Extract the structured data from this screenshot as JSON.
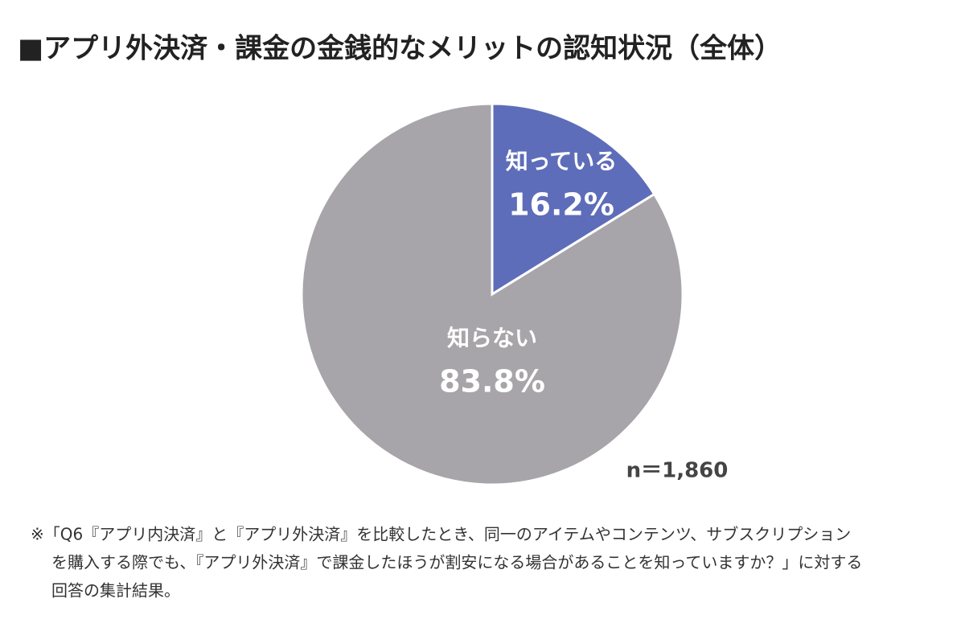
{
  "chart_data": {
    "type": "pie",
    "title": "■アプリ外決済・課金の金銭的なメリットの認知状況（全体）",
    "categories": [
      "知っている",
      "知らない"
    ],
    "values": [
      16.2,
      83.8
    ],
    "value_labels": [
      "16.2%",
      "83.8%"
    ],
    "colors": [
      "#5e6db9",
      "#a7a5a9"
    ],
    "note": "n＝1,860",
    "footnote": [
      "※「Q6『アプリ内決済』と『アプリ外決済』を比較したとき、同一のアイテムやコンテンツ、サブスクリプション",
      "を購入する際でも、『アプリ外決済』で課金したほうが割安になる場合があることを知っていますか？」に対する",
      "回答の集計結果。"
    ]
  }
}
